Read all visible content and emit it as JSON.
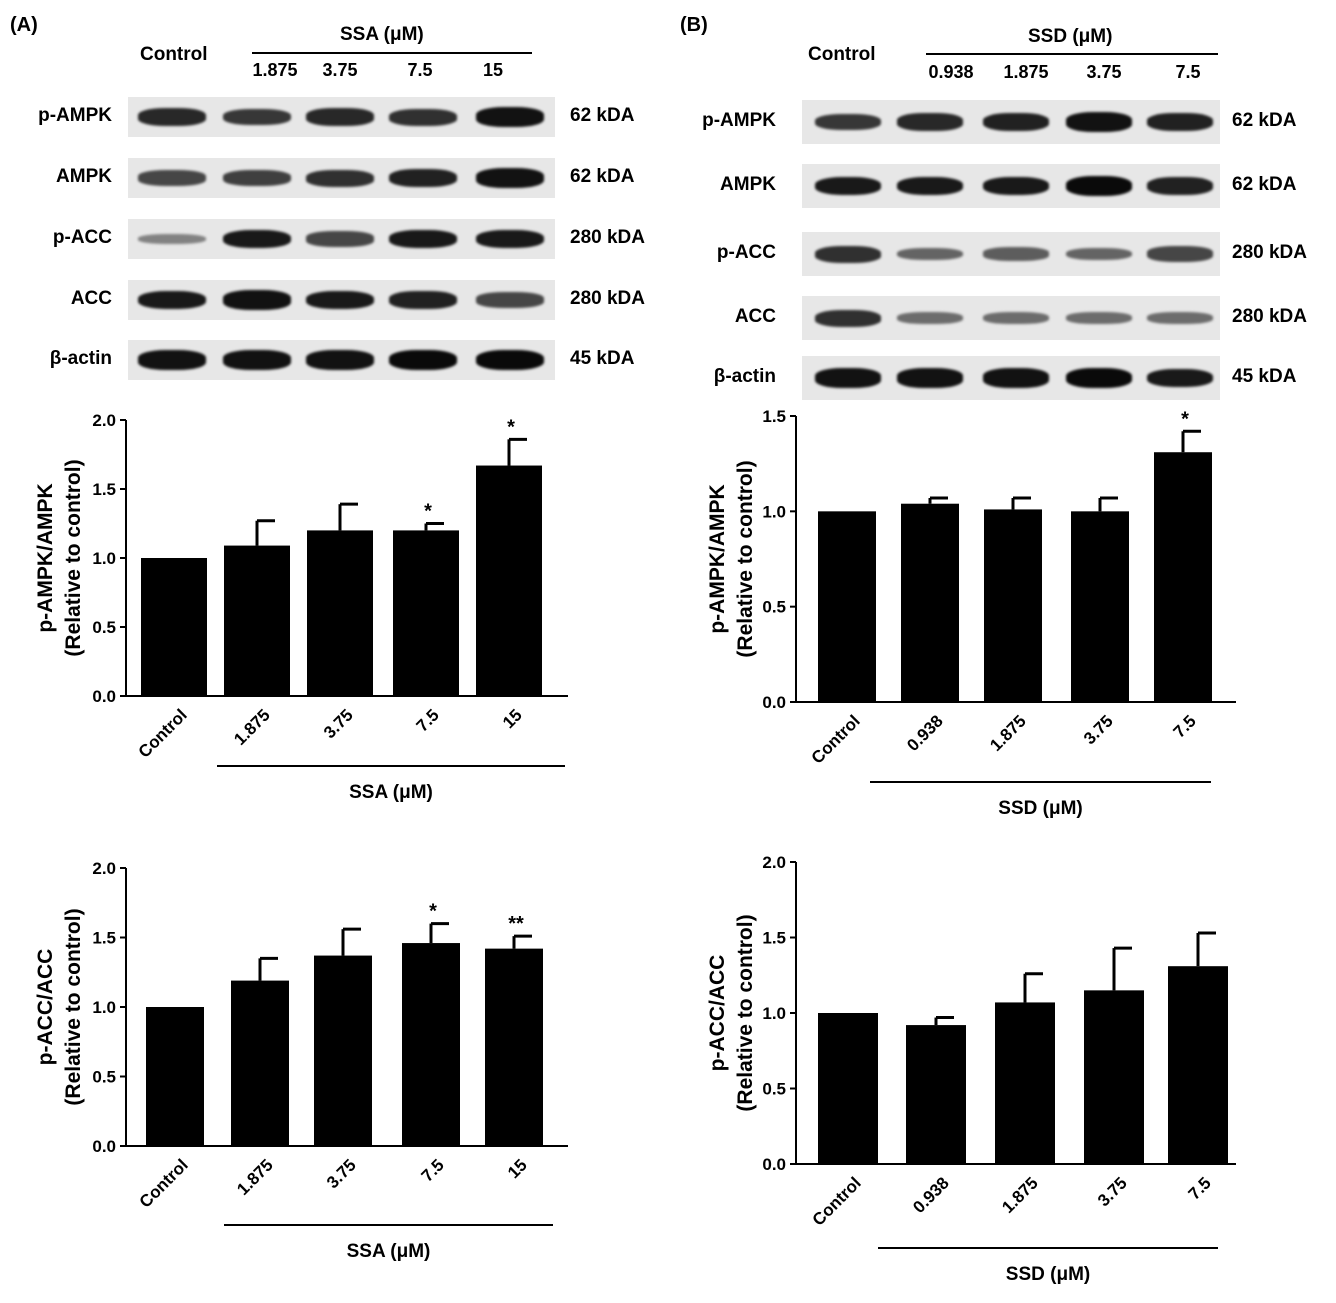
{
  "figure": {
    "panel_a_label": "(A)",
    "panel_b_label": "(B)"
  },
  "blot_a": {
    "control_label": "Control",
    "treatment_label": "SSA (μM)",
    "concentrations": [
      "1.875",
      "3.75",
      "7.5",
      "15"
    ],
    "rows": [
      {
        "label": "p-AMPK",
        "kda": "62 kDA",
        "intensity": [
          0.8,
          0.7,
          0.8,
          0.75,
          0.95
        ]
      },
      {
        "label": "AMPK",
        "kda": "62 kDA",
        "intensity": [
          0.6,
          0.65,
          0.75,
          0.85,
          0.95
        ]
      },
      {
        "label": "p-ACC",
        "kda": "280 kDA",
        "intensity": [
          0.2,
          0.9,
          0.6,
          0.9,
          0.9
        ]
      },
      {
        "label": "ACC",
        "kda": "280 kDA",
        "intensity": [
          0.9,
          0.95,
          0.9,
          0.85,
          0.6
        ]
      },
      {
        "label": "β-actin",
        "kda": "45 kDA",
        "intensity": [
          0.95,
          0.95,
          0.95,
          1.0,
          1.0
        ]
      }
    ]
  },
  "blot_b": {
    "control_label": "Control",
    "treatment_label": "SSD (μM)",
    "concentrations": [
      "0.938",
      "1.875",
      "3.75",
      "7.5"
    ],
    "rows": [
      {
        "label": "p-AMPK",
        "kda": "62 kDA",
        "intensity": [
          0.7,
          0.8,
          0.85,
          0.95,
          0.85
        ]
      },
      {
        "label": "AMPK",
        "kda": "62 kDA",
        "intensity": [
          0.9,
          0.9,
          0.9,
          1.0,
          0.85
        ]
      },
      {
        "label": "p-ACC",
        "kda": "280 kDA",
        "intensity": [
          0.75,
          0.4,
          0.45,
          0.4,
          0.6
        ]
      },
      {
        "label": "ACC",
        "kda": "280 kDA",
        "intensity": [
          0.75,
          0.35,
          0.35,
          0.35,
          0.35
        ]
      },
      {
        "label": "β-actin",
        "kda": "45 kDA",
        "intensity": [
          0.95,
          0.95,
          0.95,
          1.0,
          0.9
        ]
      }
    ]
  },
  "chart_data": [
    {
      "id": "a_pampk",
      "type": "bar",
      "ylabel_line1": "p-AMPK/AMPK",
      "ylabel_line2": "(Relative to control)",
      "xlabel": "SSA (μM)",
      "categories": [
        "Control",
        "1.875",
        "3.75",
        "7.5",
        "15"
      ],
      "values": [
        1.0,
        1.09,
        1.2,
        1.2,
        1.67
      ],
      "errors": [
        0.0,
        0.18,
        0.19,
        0.05,
        0.19
      ],
      "significance": [
        "",
        "",
        "",
        "*",
        "*"
      ],
      "ylim": [
        0,
        2.0
      ],
      "yticks": [
        "0.0",
        "0.5",
        "1.0",
        "1.5",
        "2.0"
      ],
      "bar_color": "#000000"
    },
    {
      "id": "a_pacc",
      "type": "bar",
      "ylabel_line1": "p-ACC/ACC",
      "ylabel_line2": "(Relative to control)",
      "xlabel": "SSA (μM)",
      "categories": [
        "Control",
        "1.875",
        "3.75",
        "7.5",
        "15"
      ],
      "values": [
        1.0,
        1.19,
        1.37,
        1.46,
        1.42
      ],
      "errors": [
        0.0,
        0.16,
        0.19,
        0.14,
        0.09
      ],
      "significance": [
        "",
        "",
        "",
        "*",
        "**"
      ],
      "ylim": [
        0,
        2.0
      ],
      "yticks": [
        "0.0",
        "0.5",
        "1.0",
        "1.5",
        "2.0"
      ],
      "bar_color": "#000000"
    },
    {
      "id": "b_pampk",
      "type": "bar",
      "ylabel_line1": "p-AMPK/AMPK",
      "ylabel_line2": "(Relative to control)",
      "xlabel": "SSD (μM)",
      "categories": [
        "Control",
        "0.938",
        "1.875",
        "3.75",
        "7.5"
      ],
      "values": [
        1.0,
        1.04,
        1.01,
        1.0,
        1.31
      ],
      "errors": [
        0.0,
        0.03,
        0.06,
        0.07,
        0.11
      ],
      "significance": [
        "",
        "",
        "",
        "",
        "*"
      ],
      "ylim": [
        0,
        1.5
      ],
      "yticks": [
        "0.0",
        "0.5",
        "1.0",
        "1.5"
      ],
      "bar_color": "#000000"
    },
    {
      "id": "b_pacc",
      "type": "bar",
      "ylabel_line1": "p-ACC/ACC",
      "ylabel_line2": "(Relative to control)",
      "xlabel": "SSD (μM)",
      "categories": [
        "Control",
        "0.938",
        "1.875",
        "3.75",
        "7.5"
      ],
      "values": [
        1.0,
        0.92,
        1.07,
        1.15,
        1.31
      ],
      "errors": [
        0.0,
        0.05,
        0.19,
        0.28,
        0.22
      ],
      "significance": [
        "",
        "",
        "",
        "",
        ""
      ],
      "ylim": [
        0,
        2.0
      ],
      "yticks": [
        "0.0",
        "0.5",
        "1.0",
        "1.5",
        "2.0"
      ],
      "bar_color": "#000000"
    }
  ]
}
